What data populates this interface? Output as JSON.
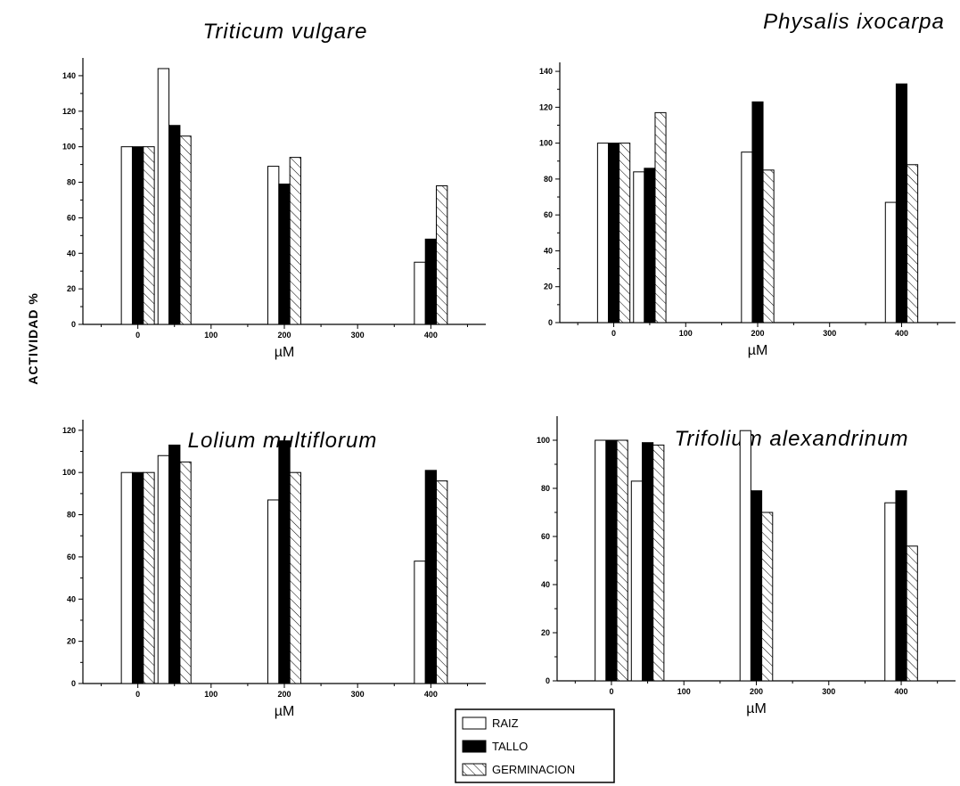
{
  "ylabel": "ACTIVIDAD %",
  "legend": {
    "placement": "bottom-center",
    "entries": [
      {
        "name": "RAIZ",
        "style": "white"
      },
      {
        "name": "TALLO",
        "style": "black"
      },
      {
        "name": "GERMINACION",
        "style": "hatched"
      }
    ]
  },
  "chart_data": [
    {
      "type": "bar",
      "title": "Triticum vulgare",
      "xlabel": "µM",
      "xlim": [
        -75,
        475
      ],
      "ylim": [
        0,
        150
      ],
      "xticks": [
        0,
        100,
        200,
        300,
        400
      ],
      "yticks": [
        0,
        20,
        40,
        60,
        80,
        100,
        120,
        140
      ],
      "x": [
        0,
        50,
        200,
        400
      ],
      "series": [
        {
          "name": "RAIZ",
          "values": [
            100,
            144,
            89,
            35
          ]
        },
        {
          "name": "TALLO",
          "values": [
            100,
            112,
            79,
            48
          ]
        },
        {
          "name": "GERMINACION",
          "values": [
            100,
            106,
            94,
            78
          ]
        }
      ]
    },
    {
      "type": "bar",
      "title": "Physalis ixocarpa",
      "xlabel": "µM",
      "xlim": [
        -75,
        475
      ],
      "ylim": [
        0,
        145
      ],
      "xticks": [
        0,
        100,
        200,
        300,
        400
      ],
      "yticks": [
        0,
        20,
        40,
        60,
        80,
        100,
        120,
        140
      ],
      "x": [
        0,
        50,
        200,
        400
      ],
      "series": [
        {
          "name": "RAIZ",
          "values": [
            100,
            84,
            95,
            67
          ]
        },
        {
          "name": "TALLO",
          "values": [
            100,
            86,
            123,
            133
          ]
        },
        {
          "name": "GERMINACION",
          "values": [
            100,
            117,
            85,
            88
          ]
        }
      ]
    },
    {
      "type": "bar",
      "title": "Lolium multiflorum",
      "xlabel": "µM",
      "xlim": [
        -75,
        475
      ],
      "ylim": [
        0,
        125
      ],
      "xticks": [
        0,
        100,
        200,
        300,
        400
      ],
      "yticks": [
        0,
        20,
        40,
        60,
        80,
        100,
        120
      ],
      "x": [
        0,
        50,
        200,
        400
      ],
      "series": [
        {
          "name": "RAIZ",
          "values": [
            100,
            108,
            87,
            58
          ]
        },
        {
          "name": "TALLO",
          "values": [
            100,
            113,
            115,
            101
          ]
        },
        {
          "name": "GERMINACION",
          "values": [
            100,
            105,
            100,
            96
          ]
        }
      ]
    },
    {
      "type": "bar",
      "title": "Trifolium alexandrinum",
      "xlabel": "µM",
      "xlim": [
        -75,
        475
      ],
      "ylim": [
        0,
        110
      ],
      "xticks": [
        0,
        100,
        200,
        300,
        400
      ],
      "yticks": [
        0,
        20,
        40,
        60,
        80,
        100
      ],
      "x": [
        0,
        50,
        200,
        400
      ],
      "series": [
        {
          "name": "RAIZ",
          "values": [
            100,
            83,
            104,
            74
          ]
        },
        {
          "name": "TALLO",
          "values": [
            100,
            99,
            79,
            79
          ]
        },
        {
          "name": "GERMINACION",
          "values": [
            100,
            98,
            70,
            56
          ]
        }
      ]
    }
  ]
}
